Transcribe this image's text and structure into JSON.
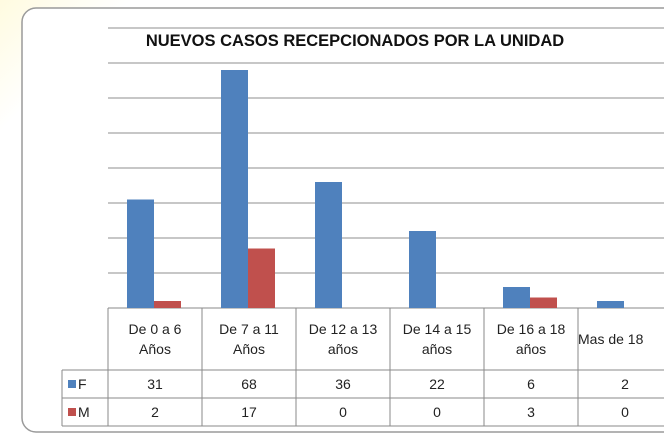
{
  "chart_data": {
    "type": "bar",
    "title": "NUEVOS CASOS RECEPCIONADOS POR LA UNIDAD",
    "categories": [
      "De 0 a 6\nAños",
      "De 7 a 11\nAños",
      "De 12 a 13\naños",
      "De 14 a 15\naños",
      "De 16 a 18\naños",
      "Mas de 18"
    ],
    "series": [
      {
        "name": "F",
        "color": "#4f81bd",
        "values": [
          31,
          68,
          36,
          22,
          6,
          2
        ]
      },
      {
        "name": "M",
        "color": "#c0504d",
        "values": [
          2,
          17,
          0,
          0,
          3,
          0
        ]
      }
    ],
    "ylim": [
      0,
      80
    ],
    "yticks": [
      0,
      10,
      20,
      30,
      40,
      50,
      60,
      70,
      80
    ],
    "grid": true
  }
}
